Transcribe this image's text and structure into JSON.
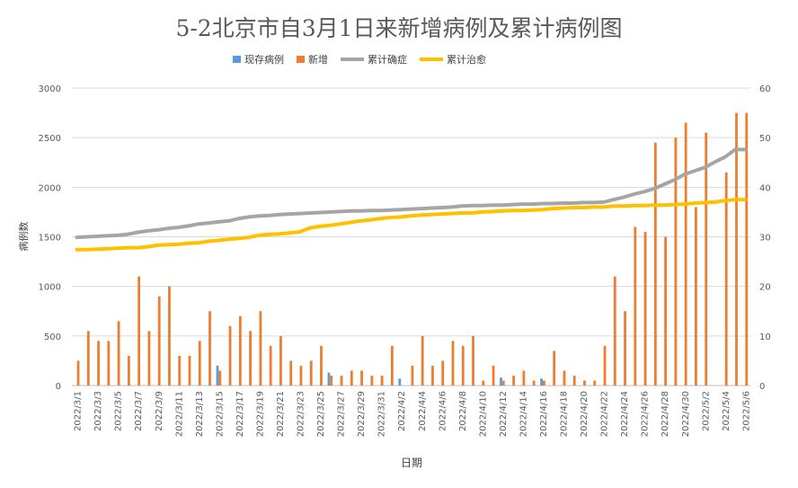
{
  "chart_data": {
    "type": "bar+line",
    "title": "5-2北京市自3月1日来新增病例及累计病例图",
    "xlabel": "日期",
    "ylabel": "病例数",
    "ylim": [
      0,
      3000
    ],
    "yticks": [
      "0",
      "500",
      "1000",
      "1500",
      "2000",
      "2500",
      "3000"
    ],
    "y2lim": [
      0,
      60
    ],
    "y2ticks": [
      "0",
      "10",
      "20",
      "30",
      "40",
      "50",
      "60"
    ],
    "grid": true,
    "legend_position": "top",
    "dates": [
      "2022/3/1",
      "2022/3/2",
      "2022/3/3",
      "2022/3/4",
      "2022/3/5",
      "2022/3/6",
      "2022/3/7",
      "2022/3/8",
      "2022/3/9",
      "2022/3/10",
      "2022/3/11",
      "2022/3/12",
      "2022/3/13",
      "2022/3/14",
      "2022/3/15",
      "2022/3/16",
      "2022/3/17",
      "2022/3/18",
      "2022/3/19",
      "2022/3/20",
      "2022/3/21",
      "2022/3/22",
      "2022/3/23",
      "2022/3/24",
      "2022/3/25",
      "2022/3/26",
      "2022/3/27",
      "2022/3/28",
      "2022/3/29",
      "2022/3/30",
      "2022/3/31",
      "2022/4/1",
      "2022/4/2",
      "2022/4/3",
      "2022/4/4",
      "2022/4/5",
      "2022/4/6",
      "2022/4/7",
      "2022/4/8",
      "2022/4/9",
      "2022/4/10",
      "2022/4/11",
      "2022/4/12",
      "2022/4/13",
      "2022/4/14",
      "2022/4/15",
      "2022/4/16",
      "2022/4/17",
      "2022/4/18",
      "2022/4/19",
      "2022/4/20",
      "2022/4/21",
      "2022/4/22",
      "2022/4/23",
      "2022/4/24",
      "2022/4/25",
      "2022/4/26",
      "2022/4/27",
      "2022/4/28",
      "2022/4/29",
      "2022/4/30",
      "2022/5/1",
      "2022/5/2",
      "2022/5/3",
      "2022/5/4",
      "2022/5/5",
      "2022/5/6"
    ],
    "shown_tick_labels": [
      "2022/3/1",
      "2022/3/3",
      "2022/3/5",
      "2022/3/7",
      "2022/3/9",
      "2022/3/11",
      "2022/3/13",
      "2022/3/15",
      "2022/3/17",
      "2022/3/19",
      "2022/3/21",
      "2022/3/23",
      "2022/3/25",
      "2022/3/27",
      "2022/3/29",
      "2022/3/31",
      "2022/4/2",
      "2022/4/4",
      "2022/4/6",
      "2022/4/8",
      "2022/4/10",
      "2022/4/12",
      "2022/4/14",
      "2022/4/16",
      "2022/4/18",
      "2022/4/20",
      "2022/4/22",
      "2022/4/24",
      "2022/4/26",
      "2022/4/28",
      "2022/4/30",
      "2022/5/2",
      "2022/5/4",
      "2022/5/6"
    ],
    "series": [
      {
        "name": "现存病例",
        "type": "bar",
        "axis": "right",
        "color": "#5b9bd5",
        "values": [
          0,
          0,
          0,
          0,
          0,
          0,
          0,
          0,
          0,
          0,
          0,
          0,
          0,
          0,
          4,
          0,
          0,
          0,
          0,
          0,
          0,
          0,
          0,
          0,
          0,
          2.6,
          0,
          0,
          0,
          0,
          0,
          0,
          1.4,
          0,
          0,
          0,
          0,
          0,
          0,
          0,
          0,
          0,
          1.6,
          0,
          0,
          0,
          1.4,
          0,
          0,
          0,
          0,
          0,
          0,
          0,
          0,
          0,
          0,
          0,
          0,
          0,
          0,
          0,
          0,
          0,
          0,
          0,
          0
        ]
      },
      {
        "name": "新增",
        "type": "bar",
        "axis": "right",
        "color": "#ed7d31",
        "values": [
          5,
          11,
          9,
          9,
          13,
          6,
          22,
          11,
          18,
          20,
          6,
          6,
          9,
          15,
          3,
          12,
          14,
          11,
          15,
          8,
          10,
          5,
          4,
          5,
          8,
          2,
          2,
          3,
          3,
          2,
          2,
          8,
          0,
          4,
          10,
          4,
          5,
          9,
          8,
          10,
          1,
          4,
          1,
          2,
          3,
          1,
          1,
          7,
          3,
          2,
          1,
          1,
          8,
          22,
          15,
          32,
          31,
          49,
          30,
          50,
          53,
          36,
          51,
          0,
          43,
          55,
          55
        ]
      },
      {
        "name": "累计确症",
        "type": "line",
        "axis": "right",
        "color": "#a5a5a5",
        "values": [
          29.9,
          30.0,
          30.1,
          30.2,
          30.3,
          30.5,
          30.9,
          31.2,
          31.4,
          31.7,
          31.9,
          32.2,
          32.6,
          32.8,
          33.0,
          33.2,
          33.7,
          34.0,
          34.2,
          34.3,
          34.5,
          34.6,
          34.7,
          34.8,
          34.9,
          35.0,
          35.1,
          35.2,
          35.2,
          35.3,
          35.3,
          35.4,
          35.5,
          35.6,
          35.7,
          35.8,
          35.9,
          36.0,
          36.2,
          36.3,
          36.3,
          36.4,
          36.4,
          36.5,
          36.6,
          36.6,
          36.7,
          36.7,
          36.8,
          36.8,
          36.9,
          36.9,
          37.0,
          37.5,
          38.0,
          38.6,
          39.1,
          39.7,
          40.6,
          41.5,
          42.6,
          43.3,
          44.0,
          45.1,
          46.1,
          47.6,
          47.6
        ]
      },
      {
        "name": "累计治愈",
        "type": "line",
        "axis": "right",
        "color": "#ffc000",
        "values": [
          27.4,
          27.4,
          27.5,
          27.6,
          27.7,
          27.8,
          27.8,
          28.0,
          28.3,
          28.4,
          28.5,
          28.7,
          28.8,
          29.1,
          29.3,
          29.5,
          29.7,
          29.9,
          30.3,
          30.5,
          30.6,
          30.8,
          31.0,
          31.8,
          32.1,
          32.3,
          32.6,
          32.9,
          33.2,
          33.4,
          33.7,
          33.9,
          34.0,
          34.2,
          34.4,
          34.5,
          34.6,
          34.7,
          34.8,
          34.8,
          35.0,
          35.1,
          35.2,
          35.3,
          35.3,
          35.4,
          35.5,
          35.7,
          35.8,
          35.9,
          35.9,
          36.0,
          36.0,
          36.2,
          36.2,
          36.3,
          36.3,
          36.4,
          36.4,
          36.5,
          36.6,
          36.8,
          36.9,
          37.0,
          37.3,
          37.5,
          37.5
        ]
      }
    ]
  }
}
